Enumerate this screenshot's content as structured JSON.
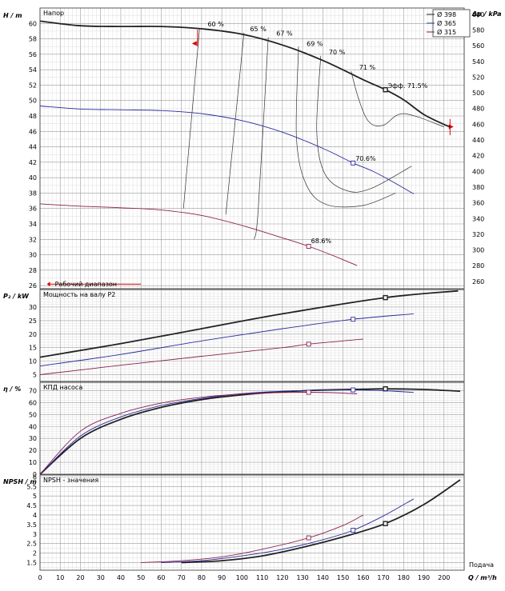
{
  "chart_data": [
    {
      "type": "line",
      "panel": "head",
      "title": "Напор",
      "ylabel": "H / m",
      "ylabel_right": "Δp / kPa",
      "ylim": [
        25.6,
        62
      ],
      "yticks": [
        26,
        28,
        30,
        32,
        34,
        36,
        38,
        40,
        42,
        44,
        46,
        48,
        50,
        52,
        54,
        56,
        58,
        60
      ],
      "ylim_right": [
        250.7,
        608
      ],
      "yticks_right": [
        260,
        280,
        300,
        320,
        340,
        360,
        380,
        400,
        420,
        440,
        460,
        480,
        500,
        520,
        540,
        560,
        580,
        600
      ],
      "legend": {
        "position": "top-right",
        "entries": [
          "Ø 398",
          "Ø 365",
          "Ø 315"
        ],
        "colors": [
          "#222222",
          "#2a2aa0",
          "#8a1f4f"
        ]
      },
      "range_label": "Рабочий диапазон",
      "series": [
        {
          "name": "Ø 398",
          "x": [
            0,
            20,
            40,
            60,
            80,
            100,
            120,
            140,
            160,
            171,
            180,
            190,
            200,
            203
          ],
          "y": [
            60.3,
            59.7,
            59.6,
            59.6,
            59.3,
            58.6,
            57.2,
            55.2,
            52.7,
            51.4,
            50.1,
            48.2,
            46.9,
            46.6
          ]
        },
        {
          "name": "Ø 365",
          "x": [
            0,
            20,
            40,
            60,
            80,
            100,
            120,
            140,
            155,
            165,
            175,
            185
          ],
          "y": [
            49.3,
            48.9,
            48.8,
            48.7,
            48.3,
            47.4,
            45.9,
            43.8,
            41.9,
            40.8,
            39.4,
            37.9
          ]
        },
        {
          "name": "Ø 315",
          "x": [
            0,
            20,
            40,
            60,
            80,
            100,
            120,
            133,
            145,
            157
          ],
          "y": [
            36.6,
            36.3,
            36.1,
            35.8,
            35.1,
            33.8,
            32.2,
            31.1,
            29.9,
            28.6
          ]
        }
      ],
      "efficiency_labels": [
        {
          "text": "60 %",
          "x": 83,
          "y": 59.6
        },
        {
          "text": "65 %",
          "x": 104,
          "y": 59.0
        },
        {
          "text": "67 %",
          "x": 117,
          "y": 58.4
        },
        {
          "text": "69 %",
          "x": 132,
          "y": 57.1
        },
        {
          "text": "70 %",
          "x": 143,
          "y": 56.0
        },
        {
          "text": "71 %",
          "x": 158,
          "y": 54.0
        }
      ],
      "point_labels": [
        {
          "text": "Эфф.  71.5%",
          "x": 171,
          "y": 51.4
        },
        {
          "text": "70.6%",
          "x": 155,
          "y": 42.0
        },
        {
          "text": "68.6%",
          "x": 133,
          "y": 31.3
        }
      ]
    },
    {
      "type": "line",
      "panel": "power",
      "title": "Мощность на валу P2",
      "ylabel": "P₂ / kW",
      "ylim": [
        2.5,
        36.5
      ],
      "yticks": [
        5,
        10,
        15,
        20,
        25,
        30
      ],
      "series": [
        {
          "name": "Ø 398",
          "x": [
            0,
            40,
            80,
            120,
            171,
            207
          ],
          "y": [
            11.5,
            16.5,
            22,
            27.5,
            33.5,
            36
          ]
        },
        {
          "name": "Ø 365",
          "x": [
            0,
            40,
            80,
            120,
            155,
            185
          ],
          "y": [
            8.2,
            12.5,
            17.5,
            22,
            25.5,
            27.5
          ]
        },
        {
          "name": "Ø 315",
          "x": [
            0,
            40,
            80,
            120,
            133,
            160
          ],
          "y": [
            5,
            8.5,
            11.8,
            15,
            16.3,
            18.2
          ]
        }
      ]
    },
    {
      "type": "line",
      "panel": "efficiency",
      "title": "КПД насоса",
      "ylabel": "η / %",
      "ylim": [
        0,
        77
      ],
      "yticks": [
        0,
        10,
        20,
        30,
        40,
        50,
        60,
        70
      ],
      "series": [
        {
          "name": "Ø 398",
          "x": [
            0,
            20,
            40,
            60,
            80,
            100,
            120,
            140,
            160,
            171,
            190,
            208
          ],
          "y": [
            0,
            30,
            46,
            56,
            62.5,
            66.5,
            69,
            70.5,
            71.2,
            71.5,
            71,
            69.5
          ]
        },
        {
          "name": "Ø 365",
          "x": [
            0,
            20,
            40,
            60,
            80,
            100,
            120,
            140,
            155,
            170,
            185
          ],
          "y": [
            0,
            32,
            48,
            57.5,
            63.5,
            67.5,
            69.5,
            70.4,
            70.6,
            70,
            68.5
          ]
        },
        {
          "name": "Ø 315",
          "x": [
            0,
            20,
            40,
            60,
            80,
            100,
            120,
            133,
            145,
            157
          ],
          "y": [
            0,
            36,
            51,
            59.5,
            64.5,
            67.2,
            68.4,
            68.6,
            68.3,
            67.3
          ]
        }
      ]
    },
    {
      "type": "line",
      "panel": "npsh",
      "title": "NPSH - значения",
      "ylabel": "NPSH / m",
      "xlabel": "Q / m³/h",
      "xlabel_word": "Подача",
      "xlim": [
        0,
        210
      ],
      "xticks": [
        0,
        10,
        20,
        30,
        40,
        50,
        60,
        70,
        80,
        90,
        100,
        110,
        120,
        130,
        140,
        150,
        160,
        170,
        180,
        190,
        200
      ],
      "ylim": [
        1.1,
        6.1
      ],
      "yticks": [
        1.5,
        2,
        2.5,
        3,
        3.5,
        4,
        4.5,
        5,
        5.5,
        6
      ],
      "series": [
        {
          "name": "Ø 398",
          "x": [
            70,
            90,
            110,
            130,
            150,
            171,
            190,
            208
          ],
          "y": [
            1.5,
            1.6,
            1.85,
            2.3,
            2.85,
            3.55,
            4.55,
            5.85
          ]
        },
        {
          "name": "Ø 365",
          "x": [
            60,
            80,
            100,
            120,
            140,
            155,
            170,
            185
          ],
          "y": [
            1.5,
            1.6,
            1.85,
            2.2,
            2.7,
            3.2,
            3.95,
            4.85
          ]
        },
        {
          "name": "Ø 315",
          "x": [
            50,
            70,
            90,
            110,
            133,
            150,
            160
          ],
          "y": [
            1.5,
            1.6,
            1.8,
            2.2,
            2.8,
            3.45,
            4.0
          ]
        }
      ]
    }
  ]
}
